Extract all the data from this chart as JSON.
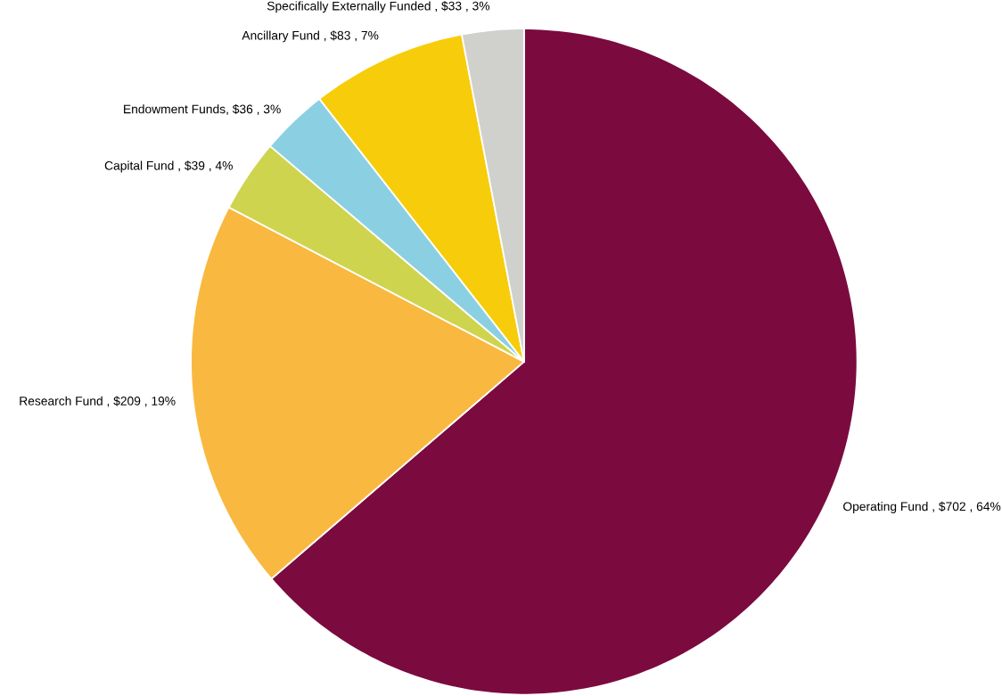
{
  "chart_data": {
    "type": "pie",
    "categories": [
      "Operating Fund , $702 , 64%",
      "Research Fund , $209 , 19%",
      "Capital Fund , $39 , 4%",
      "Endowment Funds, $36 , 3%",
      "Ancillary Fund , $83 , 7%",
      "Specifically Externally Funded , $33 , 3%"
    ],
    "values": [
      702,
      209,
      39,
      36,
      83,
      33
    ],
    "colors": [
      "#7b0a3f",
      "#f9b840",
      "#cfd44e",
      "#8ad0e2",
      "#f7cc0a",
      "#d0d1cc"
    ]
  }
}
